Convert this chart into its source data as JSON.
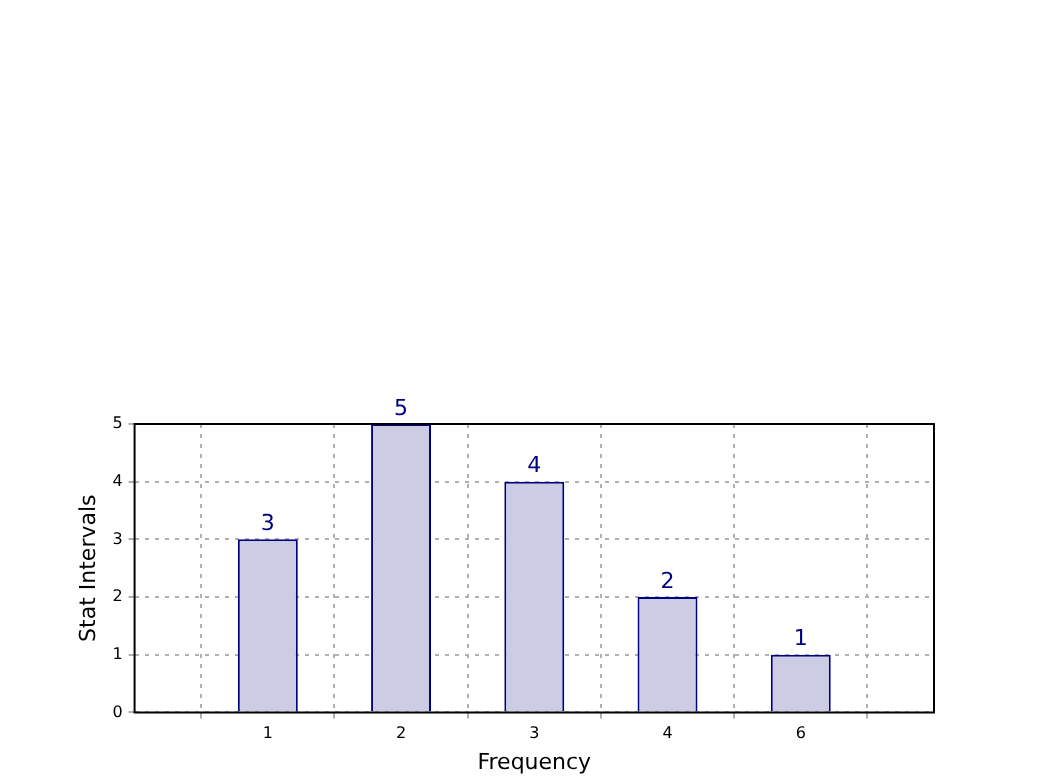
{
  "chart_data": {
    "type": "bar",
    "xlabel": "Frequency",
    "ylabel": "Stat Intervals",
    "categories": [
      "1",
      "2",
      "3",
      "4",
      "6"
    ],
    "values": [
      3,
      5,
      4,
      2,
      1
    ],
    "color": "#ccccE5",
    "ylim": [
      0,
      5
    ],
    "yticks": [
      0,
      1,
      2,
      3,
      4,
      5
    ],
    "grid": true,
    "data_labels": true,
    "legend": false
  }
}
